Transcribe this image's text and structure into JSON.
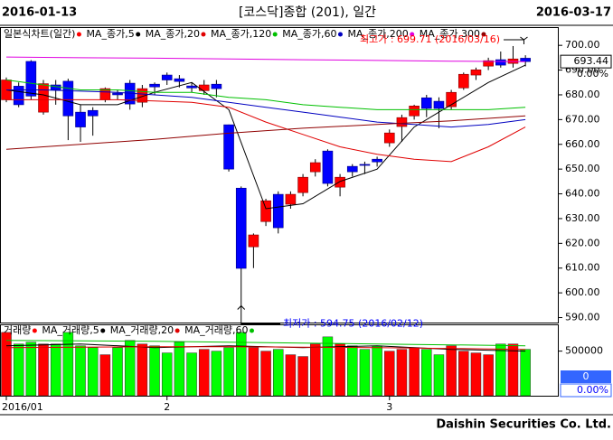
{
  "header": {
    "start": "2016-01-13",
    "title": "[코스닥]종합 (201), 일간",
    "end": "2016-03-17"
  },
  "footer": "Daishin Securities Co. Ltd.",
  "chart_data": [
    {
      "type": "candlestick",
      "name": "일본식차트(일간)",
      "categories": [
        "2016/01",
        null,
        null,
        null,
        null,
        null,
        null,
        null,
        null,
        null,
        null,
        null,
        null,
        "2",
        null,
        null,
        null,
        null,
        null,
        null,
        null,
        null,
        null,
        null,
        null,
        null,
        null,
        null,
        null,
        null,
        null,
        "3",
        null,
        null,
        null,
        null,
        null,
        null,
        null,
        null,
        null,
        null,
        null
      ],
      "open": [
        678,
        683.5,
        693.5,
        673,
        684,
        685.5,
        673,
        673.7,
        678,
        680.7,
        684.7,
        677,
        684.3,
        688,
        686.5,
        683.6,
        681.7,
        684.3,
        667.9,
        642.3,
        618.6,
        628.8,
        639.8,
        635.8,
        640.5,
        648.9,
        657.3,
        642.7,
        651.1,
        651.9,
        654,
        660.6,
        667.2,
        671.5,
        678.8,
        677.4,
        675.2,
        682.8,
        688,
        691.6,
        694.2,
        692.7,
        694.8
      ],
      "high": [
        687,
        685,
        694,
        686,
        686,
        686.5,
        676,
        675,
        683,
        682,
        686,
        684,
        685,
        689,
        688,
        685,
        686,
        686,
        668,
        643,
        624,
        638,
        641,
        641,
        648,
        654,
        658,
        648,
        652,
        653,
        655,
        666,
        672,
        676,
        680,
        679,
        682,
        689,
        691,
        695,
        697.5,
        699.71,
        696
      ],
      "low": [
        677,
        675,
        678,
        672,
        676,
        661.7,
        661,
        663.5,
        677,
        678,
        674,
        675,
        680,
        684,
        683,
        681,
        680,
        679,
        649,
        594.75,
        610,
        627,
        624,
        634,
        639,
        647,
        643,
        639,
        647,
        648,
        651,
        659,
        661,
        670,
        671,
        666.5,
        674,
        682,
        686,
        690,
        691,
        691,
        691.5
      ],
      "close": [
        686,
        676,
        679.5,
        684.5,
        682,
        671.5,
        667,
        671.5,
        682.5,
        680,
        676.3,
        682.5,
        683.2,
        686,
        685.4,
        682.8,
        684,
        682.5,
        650,
        609.9,
        623.4,
        637.2,
        626.3,
        639.8,
        646.7,
        652.6,
        644.2,
        646.7,
        648.9,
        651.5,
        652.9,
        664.6,
        670.8,
        675.5,
        674.5,
        674.5,
        681,
        688.3,
        690.1,
        693.8,
        692,
        694.5,
        693.44
      ],
      "color_up": "#ff0000",
      "color_down": "#0000ff",
      "change": {
        "value": 0,
        "label": "0.00%"
      },
      "lines": [
        {
          "name": "MA_종가,5",
          "color": "#000000",
          "x": [
            0,
            3,
            6,
            9,
            12,
            15,
            18,
            21,
            24,
            27,
            30,
            33,
            36,
            39,
            42
          ],
          "values": [
            682,
            680,
            676,
            676,
            681,
            685,
            674,
            634,
            636,
            645,
            650,
            667,
            676,
            685,
            692
          ]
        },
        {
          "name": "MA_종가,20",
          "color": "#e00000",
          "x": [
            0,
            3,
            6,
            9,
            12,
            15,
            18,
            21,
            24,
            27,
            30,
            33,
            36,
            39,
            42
          ],
          "values": [
            678,
            678,
            678,
            678,
            677.5,
            677,
            675,
            669,
            664,
            659,
            656,
            654,
            653,
            659,
            667
          ]
        },
        {
          "name": "MA_종가,120",
          "color": "#00c000",
          "x": [
            0,
            3,
            6,
            9,
            12,
            15,
            18,
            21,
            24,
            27,
            30,
            33,
            36,
            39,
            42
          ],
          "values": [
            686,
            684,
            682,
            682,
            681,
            681,
            679,
            678,
            676,
            675,
            674,
            674,
            674,
            674,
            675
          ]
        },
        {
          "name": "MA_종가,60",
          "color": "#0000c0",
          "x": [
            0,
            3,
            6,
            9,
            12,
            15,
            18,
            21,
            24,
            27,
            30,
            33,
            36,
            39,
            42
          ],
          "values": [
            682,
            682,
            681.5,
            681,
            680,
            679,
            677,
            675,
            673,
            671,
            669,
            668,
            667,
            668,
            670
          ]
        },
        {
          "name": "MA_종가,200",
          "color": "#e000e0",
          "x": [
            0,
            6,
            12,
            18,
            24,
            30,
            36,
            42
          ],
          "values": [
            695.3,
            695,
            694.8,
            694.5,
            694.2,
            693.9,
            693.6,
            693.4
          ]
        },
        {
          "name": "MA_종가,300",
          "color": "#900000",
          "x": [
            0,
            6,
            12,
            18,
            24,
            30,
            36,
            42
          ],
          "values": [
            658,
            660,
            662,
            664.5,
            666.5,
            668,
            669.5,
            671.5
          ]
        }
      ],
      "annotations": [
        {
          "text": "최고가 : 699.71 (2016/03/16)",
          "color": "#ff0000"
        },
        {
          "text": "최저가 : 594.75 (2016/02/12)",
          "color": "#0000ff"
        }
      ],
      "ylim": [
        588,
        707
      ],
      "yticks": [
        {
          "value": 590,
          "label": "590.00"
        },
        {
          "value": 600,
          "label": "600.00"
        },
        {
          "value": 610,
          "label": "610.00"
        },
        {
          "value": 620,
          "label": "620.00"
        },
        {
          "value": 630,
          "label": "630.00"
        },
        {
          "value": 640,
          "label": "640.00"
        },
        {
          "value": 650,
          "label": "650.00"
        },
        {
          "value": 660,
          "label": "660.00"
        },
        {
          "value": 670,
          "label": "670.00"
        },
        {
          "value": 680,
          "label": "680.00"
        },
        {
          "value": 690,
          "label": "690.00"
        },
        {
          "value": 700,
          "label": "700.00"
        }
      ]
    },
    {
      "type": "bar",
      "name": "거래량",
      "values": [
        710000,
        580000,
        600000,
        580000,
        580000,
        710000,
        560000,
        540000,
        460000,
        540000,
        620000,
        580000,
        560000,
        480000,
        600000,
        480000,
        520000,
        500000,
        540000,
        710000,
        540000,
        500000,
        520000,
        460000,
        440000,
        580000,
        660000,
        580000,
        560000,
        520000,
        560000,
        500000,
        520000,
        540000,
        520000,
        460000,
        560000,
        500000,
        480000,
        460000,
        580000,
        580000,
        520000
      ],
      "color_up": "#ff0000",
      "color_down": "#00ff00",
      "readout": 0,
      "change": {
        "value": 0,
        "label": "0.00%"
      },
      "lines": [
        {
          "name": "MA_거래량,5",
          "color": "#000000",
          "x": [
            0,
            6,
            12,
            18,
            24,
            30,
            36,
            42
          ],
          "values": [
            560000,
            580000,
            540000,
            560000,
            540000,
            560000,
            520000,
            500000
          ]
        },
        {
          "name": "MA_거래량,20",
          "color": "#e00000",
          "x": [
            0,
            6,
            12,
            18,
            24,
            30,
            36,
            42
          ],
          "values": [
            540000,
            545000,
            550000,
            550000,
            545000,
            540000,
            530000,
            520000
          ]
        },
        {
          "name": "MA_거래량,60",
          "color": "#00c000",
          "x": [
            0,
            6,
            12,
            18,
            24,
            30,
            36,
            42
          ],
          "values": [
            620000,
            615000,
            610000,
            600000,
            590000,
            580000,
            570000,
            560000
          ]
        }
      ],
      "ylim": [
        0,
        790000
      ],
      "yticks": [
        500000
      ]
    }
  ]
}
